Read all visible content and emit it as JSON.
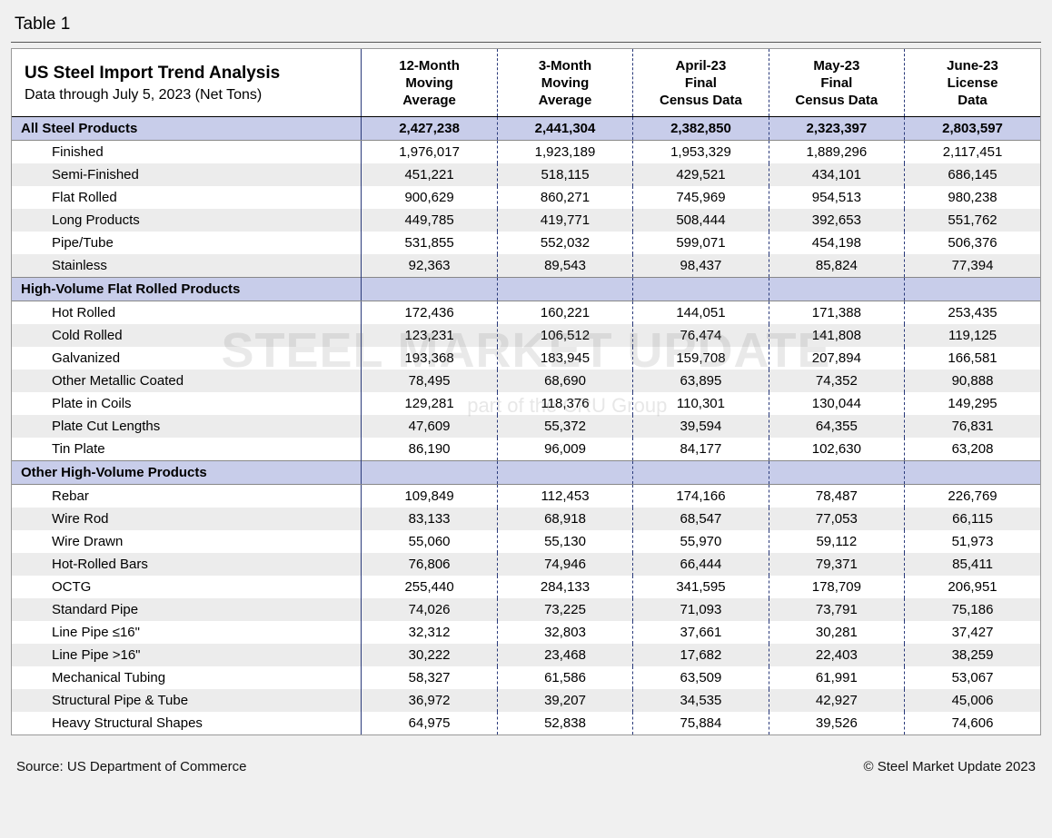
{
  "table_label": "Table 1",
  "title": "US Steel Import Trend Analysis",
  "subtitle": "Data through July 5, 2023 (Net Tons)",
  "columns": [
    "12-Month Moving Average",
    "3-Month Moving Average",
    "April-23 Final Census Data",
    "May-23 Final Census Data",
    "June-23 License Data"
  ],
  "column_header_lines": [
    [
      "12-Month",
      "Moving",
      "Average"
    ],
    [
      "3-Month",
      "Moving",
      "Average"
    ],
    [
      "April-23",
      "Final",
      "Census Data"
    ],
    [
      "May-23",
      "Final",
      "Census Data"
    ],
    [
      "June-23",
      "License",
      "Data"
    ]
  ],
  "sections": [
    {
      "name": "All Steel Products",
      "totals": [
        "2,427,238",
        "2,441,304",
        "2,382,850",
        "2,323,397",
        "2,803,597"
      ],
      "rows": [
        {
          "label": "Finished",
          "v": [
            "1,976,017",
            "1,923,189",
            "1,953,329",
            "1,889,296",
            "2,117,451"
          ]
        },
        {
          "label": "Semi-Finished",
          "v": [
            "451,221",
            "518,115",
            "429,521",
            "434,101",
            "686,145"
          ]
        },
        {
          "label": "Flat Rolled",
          "v": [
            "900,629",
            "860,271",
            "745,969",
            "954,513",
            "980,238"
          ]
        },
        {
          "label": "Long Products",
          "v": [
            "449,785",
            "419,771",
            "508,444",
            "392,653",
            "551,762"
          ]
        },
        {
          "label": "Pipe/Tube",
          "v": [
            "531,855",
            "552,032",
            "599,071",
            "454,198",
            "506,376"
          ]
        },
        {
          "label": "Stainless",
          "v": [
            "92,363",
            "89,543",
            "98,437",
            "85,824",
            "77,394"
          ]
        }
      ]
    },
    {
      "name": "High-Volume Flat Rolled Products",
      "totals": null,
      "rows": [
        {
          "label": "Hot Rolled",
          "v": [
            "172,436",
            "160,221",
            "144,051",
            "171,388",
            "253,435"
          ]
        },
        {
          "label": "Cold Rolled",
          "v": [
            "123,231",
            "106,512",
            "76,474",
            "141,808",
            "119,125"
          ]
        },
        {
          "label": "Galvanized",
          "v": [
            "193,368",
            "183,945",
            "159,708",
            "207,894",
            "166,581"
          ]
        },
        {
          "label": "Other Metallic Coated",
          "v": [
            "78,495",
            "68,690",
            "63,895",
            "74,352",
            "90,888"
          ]
        },
        {
          "label": "Plate in Coils",
          "v": [
            "129,281",
            "118,376",
            "110,301",
            "130,044",
            "149,295"
          ]
        },
        {
          "label": "Plate Cut Lengths",
          "v": [
            "47,609",
            "55,372",
            "39,594",
            "64,355",
            "76,831"
          ]
        },
        {
          "label": "Tin Plate",
          "v": [
            "86,190",
            "96,009",
            "84,177",
            "102,630",
            "63,208"
          ]
        }
      ]
    },
    {
      "name": "Other High-Volume Products",
      "totals": null,
      "rows": [
        {
          "label": "Rebar",
          "v": [
            "109,849",
            "112,453",
            "174,166",
            "78,487",
            "226,769"
          ]
        },
        {
          "label": "Wire Rod",
          "v": [
            "83,133",
            "68,918",
            "68,547",
            "77,053",
            "66,115"
          ]
        },
        {
          "label": "Wire Drawn",
          "v": [
            "55,060",
            "55,130",
            "55,970",
            "59,112",
            "51,973"
          ]
        },
        {
          "label": "Hot-Rolled Bars",
          "v": [
            "76,806",
            "74,946",
            "66,444",
            "79,371",
            "85,411"
          ]
        },
        {
          "label": "OCTG",
          "v": [
            "255,440",
            "284,133",
            "341,595",
            "178,709",
            "206,951"
          ]
        },
        {
          "label": "Standard Pipe",
          "v": [
            "74,026",
            "73,225",
            "71,093",
            "73,791",
            "75,186"
          ]
        },
        {
          "label": "Line Pipe ≤16\"",
          "v": [
            "32,312",
            "32,803",
            "37,661",
            "30,281",
            "37,427"
          ]
        },
        {
          "label": "Line Pipe >16\"",
          "v": [
            "30,222",
            "23,468",
            "17,682",
            "22,403",
            "38,259"
          ]
        },
        {
          "label": "Mechanical Tubing",
          "v": [
            "58,327",
            "61,586",
            "63,509",
            "61,991",
            "53,067"
          ]
        },
        {
          "label": "Structural Pipe & Tube",
          "v": [
            "36,972",
            "39,207",
            "34,535",
            "42,927",
            "45,006"
          ]
        },
        {
          "label": "Heavy Structural Shapes",
          "v": [
            "64,975",
            "52,838",
            "75,884",
            "39,526",
            "74,606"
          ]
        }
      ]
    }
  ],
  "watermark_main": "STEEL MARKET UPDATE",
  "watermark_sub": "part of the CRU Group",
  "footer_left": "Source: US Department of Commerce",
  "footer_right": "© Steel Market Update 2023",
  "colors": {
    "section_bg": "#c8cdea",
    "alt_row_bg": "#ececec",
    "page_bg": "#f0f0f0",
    "sep_color": "#2a3a7a"
  }
}
